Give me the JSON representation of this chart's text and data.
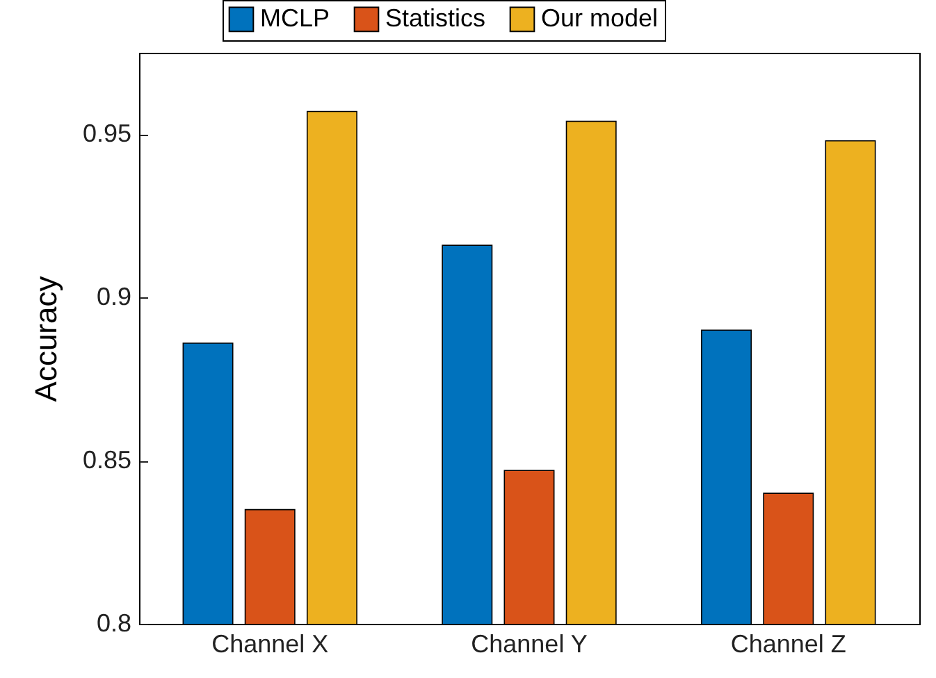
{
  "chart_data": {
    "type": "bar",
    "ylabel": "Accuracy",
    "categories": [
      "Channel X",
      "Channel Y",
      "Channel Z"
    ],
    "series": [
      {
        "name": "MCLP",
        "color": "#0072bd",
        "values": [
          0.886,
          0.916,
          0.89
        ]
      },
      {
        "name": "Statistics",
        "color": "#d95319",
        "values": [
          0.835,
          0.847,
          0.84
        ]
      },
      {
        "name": "Our model",
        "color": "#edb120",
        "values": [
          0.957,
          0.954,
          0.948
        ]
      }
    ],
    "ylim": [
      0.8,
      0.975
    ],
    "yticks": [
      0.8,
      0.85,
      0.9,
      0.95
    ],
    "grid": false,
    "legend": "top"
  }
}
